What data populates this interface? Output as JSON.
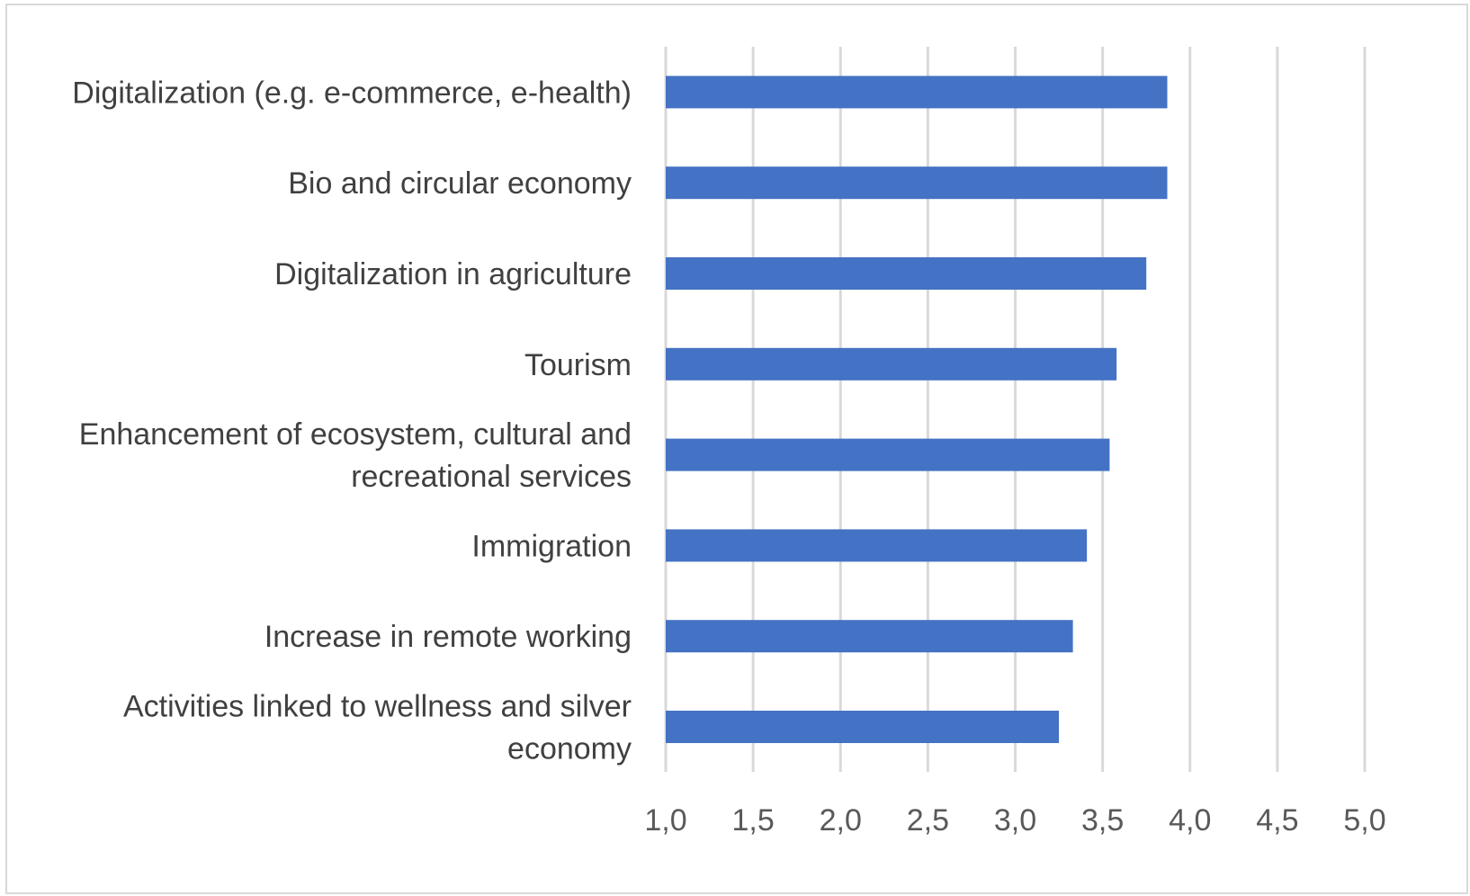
{
  "chart_data": {
    "type": "bar",
    "orientation": "horizontal",
    "title": "",
    "xlabel": "",
    "ylabel": "",
    "categories": [
      [
        "Digitalization (e.g. e-commerce, e-health)"
      ],
      [
        "Bio and circular economy"
      ],
      [
        "Digitalization in agriculture"
      ],
      [
        "Tourism"
      ],
      [
        "Enhancement of ecosystem, cultural and",
        "recreational services"
      ],
      [
        "Immigration"
      ],
      [
        "Increase in remote working"
      ],
      [
        "Activities linked to wellness and silver",
        "economy"
      ]
    ],
    "values": [
      3.87,
      3.87,
      3.75,
      3.58,
      3.54,
      3.41,
      3.33,
      3.25
    ],
    "xlim": [
      1.0,
      5.0
    ],
    "xticks": [
      "1,0",
      "1,5",
      "2,0",
      "2,5",
      "3,0",
      "3,5",
      "4,0",
      "4,5",
      "5,0"
    ],
    "grid": true,
    "legend": "none",
    "bar_color": "#4472c4",
    "grid_color": "#d9d9d9"
  }
}
